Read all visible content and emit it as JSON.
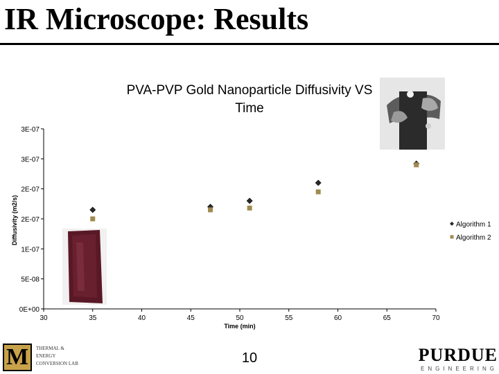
{
  "slide": {
    "title": "IR Microscope: Results",
    "page_number": "10"
  },
  "footer": {
    "left_logo_mark": "M",
    "left_logo_lines": [
      "THERMAL &",
      "ENERGY",
      "CONVERSION LAB"
    ],
    "right_logo_word": "PURDUE",
    "right_logo_sub": "ENGINEERING"
  },
  "colors": {
    "algorithm1": "#2a2a2a",
    "algorithm2": "#a08a50",
    "strip_photo": "#5a1826"
  },
  "chart_data": {
    "type": "scatter",
    "title": "PVA-PVP Gold Nanoparticle Diffusivity VS Time",
    "xlabel": "Time (min)",
    "ylabel": "Diffusivity (m2/s)",
    "xlim": [
      30,
      70
    ],
    "ylim": [
      0,
      3e-07
    ],
    "x_ticks": [
      30,
      35,
      40,
      45,
      50,
      55,
      60,
      65,
      70
    ],
    "y_ticks": [
      {
        "value": 0,
        "label": "0E+00"
      },
      {
        "value": 5e-08,
        "label": "5E-08"
      },
      {
        "value": 1e-07,
        "label": "1E-07"
      },
      {
        "value": 1.5e-07,
        "label": "2E-07"
      },
      {
        "value": 2e-07,
        "label": "2E-07"
      },
      {
        "value": 2.5e-07,
        "label": "3E-07"
      },
      {
        "value": 3e-07,
        "label": "3E-07"
      }
    ],
    "grid": false,
    "legend_position": "right",
    "series": [
      {
        "name": "Algorithm 1",
        "marker": "diamond",
        "x": [
          35,
          47,
          51,
          58,
          68
        ],
        "y": [
          1.65e-07,
          1.7e-07,
          1.8e-07,
          2.1e-07,
          2.42e-07
        ]
      },
      {
        "name": "Algorithm 2",
        "marker": "square",
        "x": [
          35,
          47,
          51,
          58,
          68
        ],
        "y": [
          1.5e-07,
          1.65e-07,
          1.68e-07,
          1.95e-07,
          2.4e-07
        ]
      }
    ]
  }
}
